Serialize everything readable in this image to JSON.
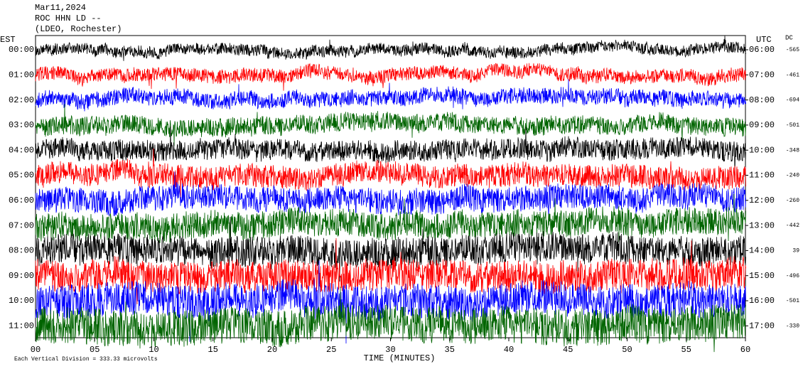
{
  "chart_data": {
    "type": "helicorder",
    "title_lines": [
      "Mar11,2024",
      "ROC HHN LD --",
      "(LDEO, Rochester)"
    ],
    "left_axis_label": "EST",
    "right_axis_label": "UTC",
    "dc_label": "DC",
    "xlabel": "TIME (MINUTES)",
    "footnote": "Each Vertical Division = 333.33 microvolts",
    "xlim": [
      0,
      60
    ],
    "xticks": [
      {
        "value": 0,
        "label": "00"
      },
      {
        "value": 5,
        "label": "05"
      },
      10,
      15,
      20,
      25,
      30,
      {
        "value": 35,
        "label": "35"
      },
      40,
      45,
      50,
      55,
      60
    ],
    "rows": [
      {
        "est": "00:00",
        "utc": "06:00",
        "dc": "-565",
        "color": "#000000"
      },
      {
        "est": "01:00",
        "utc": "07:00",
        "dc": "-461",
        "color": "#ff0000"
      },
      {
        "est": "02:00",
        "utc": "08:00",
        "dc": "-694",
        "color": "#0000ff"
      },
      {
        "est": "03:00",
        "utc": "09:00",
        "dc": "-501",
        "color": "#006400"
      },
      {
        "est": "04:00",
        "utc": "10:00",
        "dc": "-348",
        "color": "#000000"
      },
      {
        "est": "05:00",
        "utc": "11:00",
        "dc": "-240",
        "color": "#ff0000"
      },
      {
        "est": "06:00",
        "utc": "12:00",
        "dc": "-260",
        "color": "#0000ff"
      },
      {
        "est": "07:00",
        "utc": "13:00",
        "dc": "-442",
        "color": "#006400"
      },
      {
        "est": "08:00",
        "utc": "14:00",
        "dc": "39",
        "color": "#000000"
      },
      {
        "est": "09:00",
        "utc": "15:00",
        "dc": "-496",
        "color": "#ff0000"
      },
      {
        "est": "10:00",
        "utc": "16:00",
        "dc": "-501",
        "color": "#0000ff"
      },
      {
        "est": "11:00",
        "utc": "17:00",
        "dc": "-330",
        "color": "#006400"
      }
    ]
  }
}
